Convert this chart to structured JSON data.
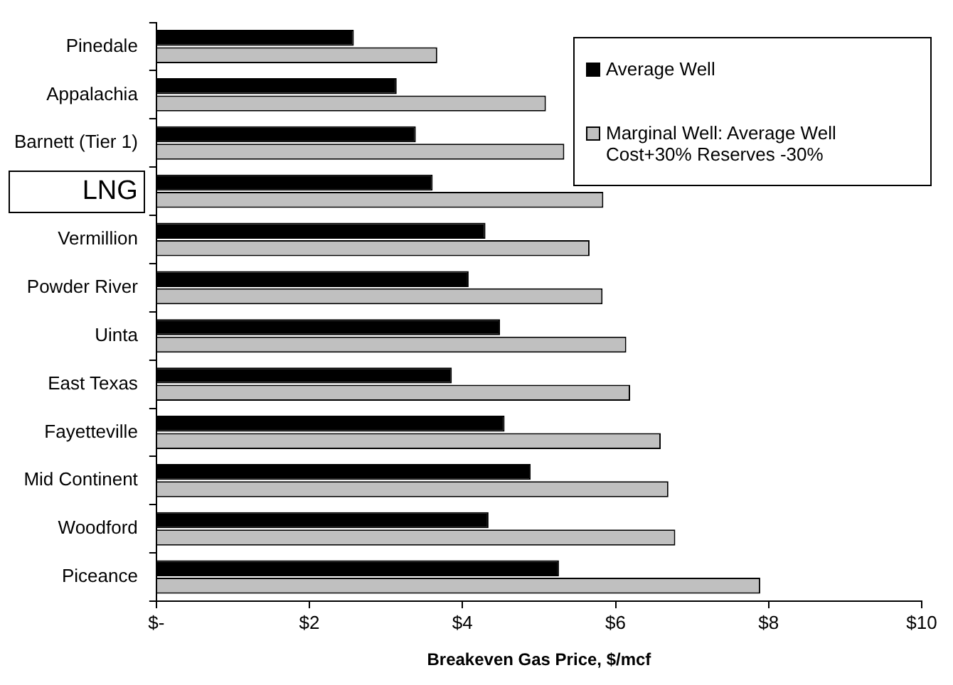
{
  "chart_data": {
    "type": "bar",
    "orientation": "horizontal",
    "xlabel": "Breakeven Gas Price, $/mcf",
    "categories": [
      "Pinedale",
      "Appalachia",
      "Barnett (Tier 1)",
      "LNG",
      "Vermillion",
      "Powder River",
      "Uinta",
      "East Texas",
      "Fayetteville",
      "Mid Continent",
      "Woodford",
      "Piceance"
    ],
    "series": [
      {
        "name": "Average Well",
        "color": "#000000",
        "values": [
          2.58,
          3.14,
          3.39,
          3.61,
          4.3,
          4.08,
          4.49,
          3.86,
          4.55,
          4.89,
          4.34,
          5.26
        ]
      },
      {
        "name": "Marginal Well: Average Well Cost+30% Reserves -30%",
        "color": "#c0c0c0",
        "values": [
          3.67,
          5.09,
          5.33,
          5.84,
          5.66,
          5.83,
          6.14,
          6.19,
          6.59,
          6.69,
          6.78,
          7.89
        ]
      }
    ],
    "xlim": [
      0,
      10
    ],
    "xticks": [
      {
        "value": 0,
        "label": "$-"
      },
      {
        "value": 2,
        "label": "$2"
      },
      {
        "value": 4,
        "label": "$4"
      },
      {
        "value": 6,
        "label": "$6"
      },
      {
        "value": 8,
        "label": "$8"
      },
      {
        "value": 10,
        "label": "$10"
      }
    ],
    "grid": false,
    "legend": "top right"
  }
}
